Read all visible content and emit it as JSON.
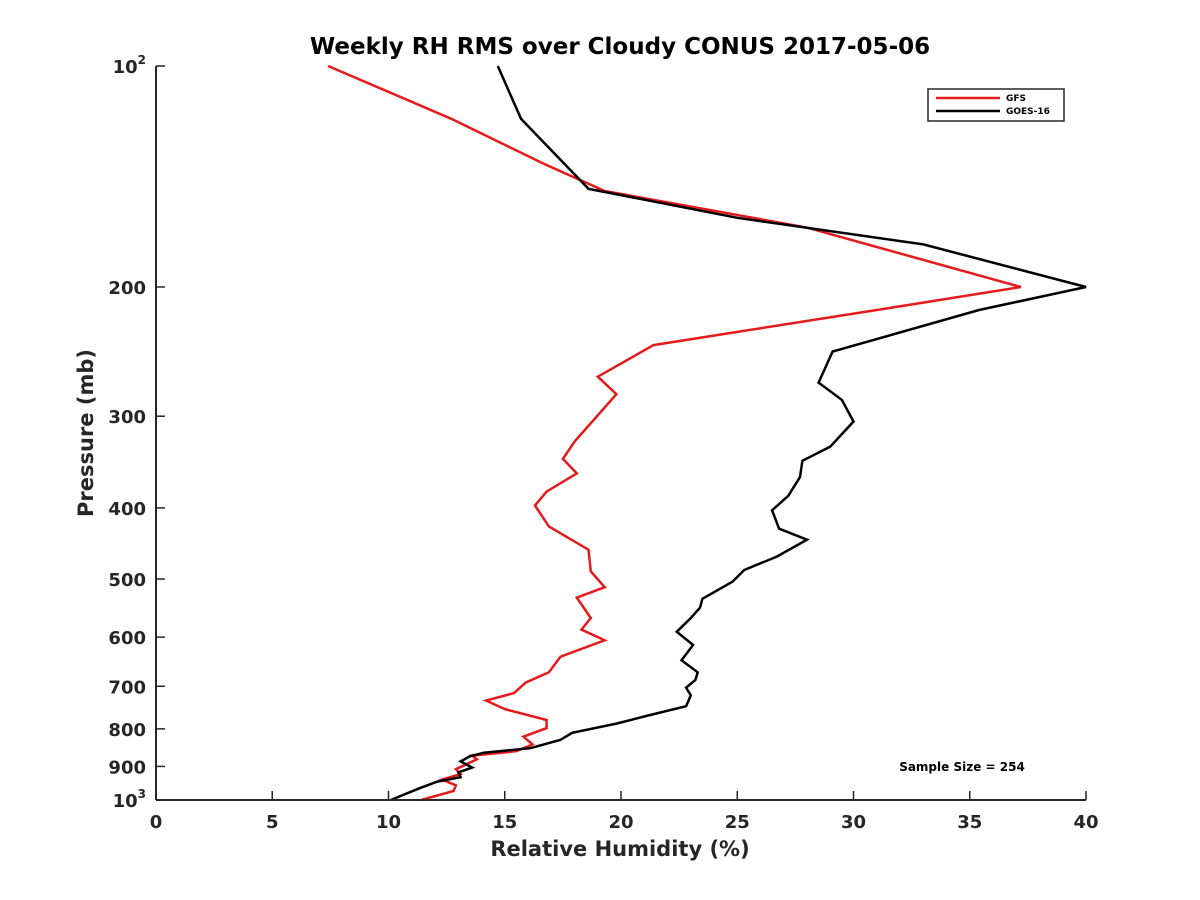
{
  "chart_data": {
    "type": "line",
    "title": "Weekly RH RMS over Cloudy CONUS 2017-05-06",
    "xlabel": "Relative Humidity (%)",
    "ylabel": "Pressure (mb)",
    "xlim": [
      0,
      40
    ],
    "ylim": [
      100,
      1000
    ],
    "yscale": "log",
    "yreversed": true,
    "x_ticks": [
      "0",
      "5",
      "10",
      "15",
      "20",
      "25",
      "30",
      "35",
      "40"
    ],
    "y_ticks": [
      {
        "value": 100,
        "base": "10",
        "exp": "2"
      },
      {
        "value": 200,
        "base": "200",
        "exp": ""
      },
      {
        "value": 300,
        "base": "300",
        "exp": ""
      },
      {
        "value": 400,
        "base": "400",
        "exp": ""
      },
      {
        "value": 500,
        "base": "500",
        "exp": ""
      },
      {
        "value": 600,
        "base": "600",
        "exp": ""
      },
      {
        "value": 700,
        "base": "700",
        "exp": ""
      },
      {
        "value": 800,
        "base": "800",
        "exp": ""
      },
      {
        "value": 900,
        "base": "900",
        "exp": ""
      },
      {
        "value": 1000,
        "base": "10",
        "exp": "3"
      }
    ],
    "legend_position": "top-right",
    "annotation": "Sample Size = 254",
    "series": [
      {
        "name": "GFS",
        "color": "#e41a1c",
        "points": [
          [
            7.4,
            100
          ],
          [
            12.7,
            118
          ],
          [
            16.7,
            136
          ],
          [
            19.3,
            148
          ],
          [
            28,
            166
          ],
          [
            37.2,
            200
          ],
          [
            31,
            215
          ],
          [
            21.4,
            240
          ],
          [
            19,
            265
          ],
          [
            19.8,
            280
          ],
          [
            18,
            325
          ],
          [
            17.5,
            343
          ],
          [
            18.1,
            359
          ],
          [
            16.8,
            380
          ],
          [
            16.3,
            397
          ],
          [
            16.9,
            424
          ],
          [
            18.6,
            456
          ],
          [
            18.7,
            488
          ],
          [
            19.3,
            513
          ],
          [
            18.1,
            530
          ],
          [
            18.7,
            565
          ],
          [
            18.3,
            586
          ],
          [
            19.3,
            606
          ],
          [
            17.4,
            638
          ],
          [
            16.9,
            670
          ],
          [
            15.9,
            692
          ],
          [
            15.4,
            715
          ],
          [
            14.2,
            732
          ],
          [
            15,
            752
          ],
          [
            16.8,
            778
          ],
          [
            16.8,
            798
          ],
          [
            15.8,
            820
          ],
          [
            16.2,
            840
          ],
          [
            15.5,
            858
          ],
          [
            13.6,
            870
          ],
          [
            13.8,
            880
          ],
          [
            12.9,
            908
          ],
          [
            13.1,
            922
          ],
          [
            12.3,
            938
          ],
          [
            12.9,
            955
          ],
          [
            12.8,
            972
          ],
          [
            11.4,
            1000
          ]
        ]
      },
      {
        "name": "GOES-16",
        "color": "#000000",
        "points": [
          [
            14.7,
            100
          ],
          [
            15.7,
            118
          ],
          [
            18.6,
            147
          ],
          [
            25,
            161
          ],
          [
            33,
            175
          ],
          [
            40,
            200
          ],
          [
            35.4,
            215
          ],
          [
            29.1,
            245
          ],
          [
            28.5,
            270
          ],
          [
            29.5,
            285
          ],
          [
            30,
            305
          ],
          [
            29,
            330
          ],
          [
            27.8,
            345
          ],
          [
            27.7,
            363
          ],
          [
            27.2,
            385
          ],
          [
            26.5,
            403
          ],
          [
            26.8,
            427
          ],
          [
            28,
            442
          ],
          [
            26.7,
            466
          ],
          [
            25.3,
            486
          ],
          [
            24.8,
            504
          ],
          [
            23.5,
            532
          ],
          [
            23.4,
            547
          ],
          [
            23,
            565
          ],
          [
            22.4,
            590
          ],
          [
            23.1,
            615
          ],
          [
            22.6,
            645
          ],
          [
            23.3,
            670
          ],
          [
            23.2,
            686
          ],
          [
            22.8,
            703
          ],
          [
            23,
            720
          ],
          [
            22.8,
            745
          ],
          [
            21.1,
            768
          ],
          [
            19.8,
            787
          ],
          [
            17.9,
            810
          ],
          [
            17.4,
            828
          ],
          [
            16.1,
            850
          ],
          [
            14.1,
            862
          ],
          [
            13.5,
            872
          ],
          [
            13.1,
            886
          ],
          [
            13.6,
            903
          ],
          [
            13,
            917
          ],
          [
            13.1,
            931
          ],
          [
            12.1,
            944
          ],
          [
            11.3,
            965
          ],
          [
            10.1,
            1000
          ]
        ]
      }
    ]
  }
}
